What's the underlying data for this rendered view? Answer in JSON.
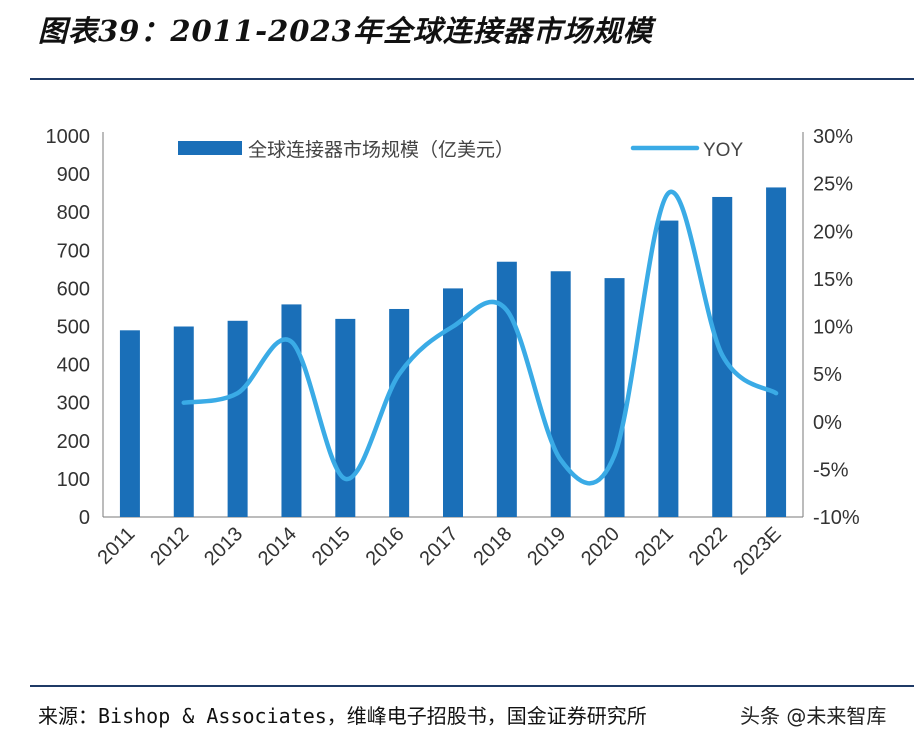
{
  "title": "图表39：2011-2023年全球连接器市场规模",
  "source": "来源：Bishop & Associates，维峰电子招股书，国金证券研究所",
  "watermark": "头条 @未来智库",
  "chart_data": {
    "type": "bar",
    "categories": [
      "2011",
      "2012",
      "2013",
      "2014",
      "2015",
      "2016",
      "2017",
      "2018",
      "2019",
      "2020",
      "2021",
      "2022",
      "2023E"
    ],
    "series": [
      {
        "name": "全球连接器市场规模（亿美元）",
        "type": "bar",
        "axis": "left",
        "color": "#1a6fb8",
        "values": [
          490,
          500,
          515,
          558,
          520,
          546,
          600,
          670,
          645,
          627,
          778,
          840,
          865
        ]
      },
      {
        "name": "YOY",
        "type": "line",
        "axis": "right",
        "color": "#3aabe6",
        "values": [
          null,
          2.0,
          3.0,
          8.4,
          -6.0,
          5.0,
          10.0,
          11.7,
          -4.0,
          -3.5,
          24.0,
          7.0,
          3.0
        ]
      }
    ],
    "y_left": {
      "ylim": [
        0,
        1000
      ],
      "ticks": [
        0,
        100,
        200,
        300,
        400,
        500,
        600,
        700,
        800,
        900,
        1000
      ]
    },
    "y_right": {
      "ylim": [
        -10,
        30
      ],
      "ticks": [
        "-10%",
        "-5%",
        "0%",
        "5%",
        "10%",
        "15%",
        "20%",
        "25%",
        "30%"
      ]
    },
    "legend": "top"
  }
}
